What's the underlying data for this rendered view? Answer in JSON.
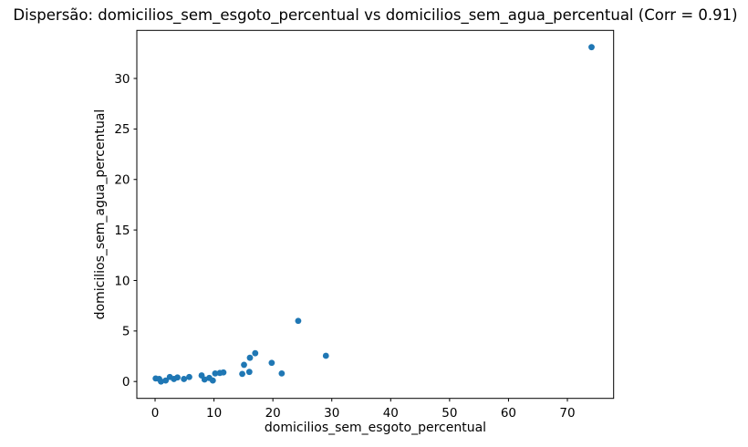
{
  "figure": {
    "background_color": "#ffffff",
    "frame_color": "#000000"
  },
  "chart_data": {
    "type": "scatter",
    "title": "Dispersão: domicilios_sem_esgoto_percentual vs domicilios_sem_agua_percentual (Corr = 0.91)",
    "correlation": 0.91,
    "xlabel": "domicilios_sem_esgoto_percentual",
    "ylabel": "domicilios_sem_agua_percentual",
    "xticks": [
      0,
      10,
      20,
      30,
      40,
      50,
      60,
      70
    ],
    "yticks": [
      0,
      5,
      10,
      15,
      20,
      25,
      30
    ],
    "xlim": [
      -3.1,
      77.85
    ],
    "ylim": [
      -1.67,
      34.76
    ],
    "grid": false,
    "legend": "none",
    "marker_color": "#1f77b4",
    "marker_radius_px": 3.4,
    "points": [
      [
        0.1,
        0.3
      ],
      [
        0.7,
        0.25
      ],
      [
        1.0,
        0.0
      ],
      [
        1.8,
        0.1
      ],
      [
        2.5,
        0.45
      ],
      [
        3.2,
        0.25
      ],
      [
        3.8,
        0.4
      ],
      [
        4.9,
        0.25
      ],
      [
        5.8,
        0.45
      ],
      [
        7.9,
        0.6
      ],
      [
        8.4,
        0.2
      ],
      [
        9.2,
        0.35
      ],
      [
        9.8,
        0.1
      ],
      [
        10.2,
        0.8
      ],
      [
        11.0,
        0.85
      ],
      [
        11.6,
        0.9
      ],
      [
        14.8,
        0.75
      ],
      [
        15.1,
        1.65
      ],
      [
        16.0,
        0.95
      ],
      [
        16.1,
        2.35
      ],
      [
        17.0,
        2.8
      ],
      [
        19.8,
        1.85
      ],
      [
        21.5,
        0.8
      ],
      [
        24.3,
        6.0
      ],
      [
        29.0,
        2.55
      ],
      [
        74.1,
        33.1
      ]
    ]
  }
}
